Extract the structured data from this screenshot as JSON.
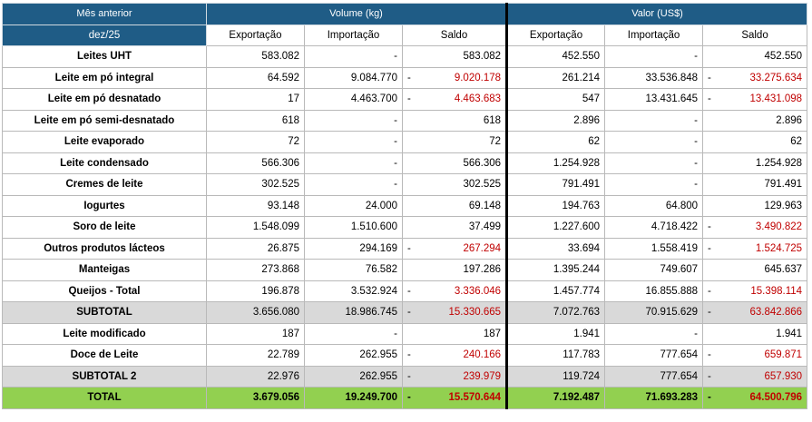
{
  "header": {
    "period_label": "Mês anterior",
    "period_value": "dez/25",
    "volume_group": "Volume (kg)",
    "valor_group": "Valor (US$)",
    "columns": [
      "Exportação",
      "Importação",
      "Saldo",
      "Exportação",
      "Importação",
      "Saldo"
    ]
  },
  "rows": [
    {
      "label": "Leites UHT",
      "style": "normal",
      "values": [
        "583.082",
        "-",
        "583.082",
        "452.550",
        "-",
        "452.550"
      ],
      "neg": [
        false,
        false,
        false,
        false,
        false,
        false
      ]
    },
    {
      "label": "Leite em pó integral",
      "style": "normal",
      "values": [
        "64.592",
        "9.084.770",
        "9.020.178",
        "261.214",
        "33.536.848",
        "33.275.634"
      ],
      "neg": [
        false,
        false,
        true,
        false,
        false,
        true
      ]
    },
    {
      "label": "Leite em pó desnatado",
      "style": "normal",
      "values": [
        "17",
        "4.463.700",
        "4.463.683",
        "547",
        "13.431.645",
        "13.431.098"
      ],
      "neg": [
        false,
        false,
        true,
        false,
        false,
        true
      ]
    },
    {
      "label": "Leite em pó semi-desnatado",
      "style": "normal",
      "values": [
        "618",
        "-",
        "618",
        "2.896",
        "-",
        "2.896"
      ],
      "neg": [
        false,
        false,
        false,
        false,
        false,
        false
      ]
    },
    {
      "label": "Leite evaporado",
      "style": "normal",
      "values": [
        "72",
        "-",
        "72",
        "62",
        "-",
        "62"
      ],
      "neg": [
        false,
        false,
        false,
        false,
        false,
        false
      ]
    },
    {
      "label": "Leite condensado",
      "style": "normal",
      "values": [
        "566.306",
        "-",
        "566.306",
        "1.254.928",
        "-",
        "1.254.928"
      ],
      "neg": [
        false,
        false,
        false,
        false,
        false,
        false
      ]
    },
    {
      "label": "Cremes de leite",
      "style": "normal",
      "values": [
        "302.525",
        "-",
        "302.525",
        "791.491",
        "-",
        "791.491"
      ],
      "neg": [
        false,
        false,
        false,
        false,
        false,
        false
      ]
    },
    {
      "label": "Iogurtes",
      "style": "normal",
      "values": [
        "93.148",
        "24.000",
        "69.148",
        "194.763",
        "64.800",
        "129.963"
      ],
      "neg": [
        false,
        false,
        false,
        false,
        false,
        false
      ]
    },
    {
      "label": "Soro de leite",
      "style": "normal",
      "values": [
        "1.548.099",
        "1.510.600",
        "37.499",
        "1.227.600",
        "4.718.422",
        "3.490.822"
      ],
      "neg": [
        false,
        false,
        false,
        false,
        false,
        true
      ]
    },
    {
      "label": "Outros produtos lácteos",
      "style": "normal",
      "values": [
        "26.875",
        "294.169",
        "267.294",
        "33.694",
        "1.558.419",
        "1.524.725"
      ],
      "neg": [
        false,
        false,
        true,
        false,
        false,
        true
      ]
    },
    {
      "label": "Manteigas",
      "style": "normal",
      "values": [
        "273.868",
        "76.582",
        "197.286",
        "1.395.244",
        "749.607",
        "645.637"
      ],
      "neg": [
        false,
        false,
        false,
        false,
        false,
        false
      ]
    },
    {
      "label": "Queijos - Total",
      "style": "normal",
      "values": [
        "196.878",
        "3.532.924",
        "3.336.046",
        "1.457.774",
        "16.855.888",
        "15.398.114"
      ],
      "neg": [
        false,
        false,
        true,
        false,
        false,
        true
      ]
    },
    {
      "label": "SUBTOTAL",
      "style": "sub",
      "values": [
        "3.656.080",
        "18.986.745",
        "15.330.665",
        "7.072.763",
        "70.915.629",
        "63.842.866"
      ],
      "neg": [
        false,
        false,
        true,
        false,
        false,
        true
      ]
    },
    {
      "label": "Leite modificado",
      "style": "normal",
      "values": [
        "187",
        "-",
        "187",
        "1.941",
        "-",
        "1.941"
      ],
      "neg": [
        false,
        false,
        false,
        false,
        false,
        false
      ]
    },
    {
      "label": "Doce de Leite",
      "style": "normal",
      "values": [
        "22.789",
        "262.955",
        "240.166",
        "117.783",
        "777.654",
        "659.871"
      ],
      "neg": [
        false,
        false,
        true,
        false,
        false,
        true
      ]
    },
    {
      "label": "SUBTOTAL 2",
      "style": "sub",
      "values": [
        "22.976",
        "262.955",
        "239.979",
        "119.724",
        "777.654",
        "657.930"
      ],
      "neg": [
        false,
        false,
        true,
        false,
        false,
        true
      ]
    },
    {
      "label": "TOTAL",
      "style": "tot",
      "values": [
        "3.679.056",
        "19.249.700",
        "15.570.644",
        "7.192.487",
        "71.693.283",
        "64.500.796"
      ],
      "neg": [
        false,
        false,
        true,
        false,
        false,
        true
      ]
    }
  ],
  "colors": {
    "header_bg": "#1f5c86",
    "negative_text": "#c00000",
    "subtotal_bg": "#d9d9d9",
    "total_bg": "#92d050"
  }
}
